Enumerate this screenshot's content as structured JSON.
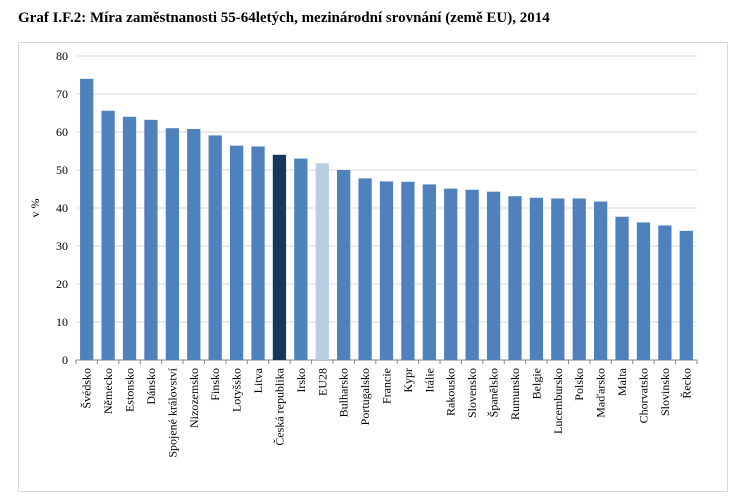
{
  "chart_data": {
    "type": "bar",
    "title": "Graf I.F.2: Míra zaměstnanosti 55-64letých, mezinárodní srovnání (země EU), 2014",
    "ylabel": "v %",
    "xlabel": "",
    "ylim": [
      0,
      80
    ],
    "yticks": [
      0,
      10,
      20,
      30,
      40,
      50,
      60,
      70,
      80
    ],
    "grid": true,
    "categories": [
      "Švédsko",
      "Německo",
      "Estonsko",
      "Dánsko",
      "Spojené království",
      "Nizozemsko",
      "Finsko",
      "Lotyšsko",
      "Litva",
      "Česká republika",
      "Irsko",
      "EU28",
      "Bulharsko",
      "Portugalsko",
      "Francie",
      "Kypr",
      "Itálie",
      "Rakousko",
      "Slovensko",
      "Španělsko",
      "Rumunsko",
      "Belgie",
      "Lucembursko",
      "Polsko",
      "Maďarsko",
      "Malta",
      "Chorvatsko",
      "Slovinsko",
      "Řecko"
    ],
    "values": [
      74.0,
      65.6,
      64.0,
      63.2,
      61.0,
      60.8,
      59.1,
      56.4,
      56.2,
      54.0,
      53.0,
      51.8,
      50.0,
      47.8,
      47.0,
      46.9,
      46.2,
      45.1,
      44.8,
      44.3,
      43.1,
      42.7,
      42.5,
      42.5,
      41.7,
      37.7,
      36.2,
      35.4,
      34.0
    ],
    "colors": {
      "default": "#4f81bd",
      "highlight": "#17375e",
      "reference": "#b9cde5",
      "grid": "#d9d9d9",
      "axis": "#868686"
    },
    "highlight_category": "Česká republika",
    "reference_category": "EU28"
  }
}
